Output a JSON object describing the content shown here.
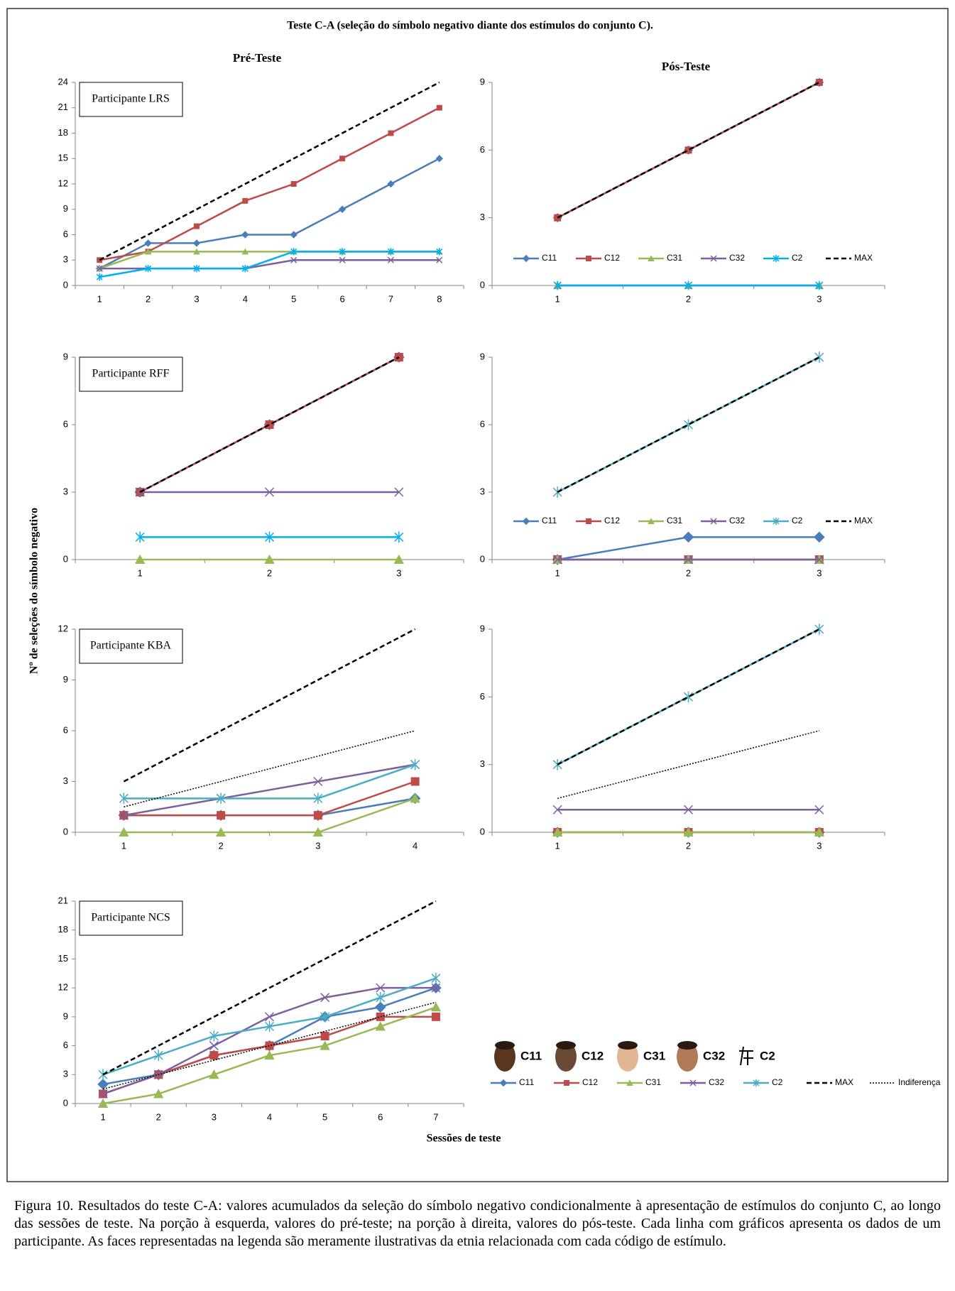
{
  "header": {
    "title": "Teste C-A (seleção do símbolo negativo diante dos estímulos do conjunto C).",
    "pre_label": "Pré-Teste",
    "post_label": "Pós-Teste",
    "y_label": "Nº de seleções do símbolo negativo",
    "x_label": "Sessões  de teste"
  },
  "chart_data": [
    {
      "type": "line",
      "title": "Participante LRS",
      "categories": [
        1,
        2,
        3,
        4,
        5,
        6,
        7,
        8
      ],
      "ylim": [
        0,
        24
      ],
      "yticks": [
        0,
        3,
        6,
        9,
        12,
        15,
        18,
        21,
        24
      ],
      "series": [
        {
          "name": "C11",
          "color": "#4a7ebb",
          "marker": "diamond",
          "values": [
            2,
            5,
            5,
            6,
            6,
            9,
            12,
            15
          ]
        },
        {
          "name": "C12",
          "color": "#be4b48",
          "marker": "square",
          "values": [
            3,
            4,
            7,
            10,
            12,
            15,
            18,
            21
          ]
        },
        {
          "name": "C31",
          "color": "#98b954",
          "marker": "triangle",
          "values": [
            2,
            4,
            4,
            4,
            4,
            4,
            4,
            4
          ]
        },
        {
          "name": "C32",
          "color": "#7d5fa0",
          "marker": "x",
          "values": [
            2,
            2,
            2,
            2,
            3,
            3,
            3,
            3
          ]
        },
        {
          "name": "C2",
          "color": "#00b0f0",
          "marker": "star",
          "values": [
            1,
            2,
            2,
            2,
            4,
            4,
            4,
            4
          ]
        },
        {
          "name": "MAX",
          "color": "#000000",
          "marker": "none",
          "dash": "dashed",
          "values": [
            3,
            6,
            9,
            12,
            15,
            18,
            21,
            24
          ]
        }
      ]
    },
    {
      "type": "line",
      "categories": [
        1,
        2,
        3
      ],
      "ylim": [
        0,
        9
      ],
      "yticks": [
        0,
        3,
        6,
        9
      ],
      "legend": "bottom",
      "series": [
        {
          "name": "C11",
          "color": "#4a7ebb",
          "marker": "diamond",
          "values": [
            3,
            6,
            9
          ]
        },
        {
          "name": "C12",
          "color": "#be4b48",
          "marker": "square",
          "values": [
            3,
            6,
            9
          ]
        },
        {
          "name": "C31",
          "color": "#98b954",
          "marker": "triangle",
          "values": [
            0,
            0,
            0
          ]
        },
        {
          "name": "C32",
          "color": "#7d5fa0",
          "marker": "x",
          "values": [
            0,
            0,
            0
          ]
        },
        {
          "name": "C2",
          "color": "#00b0f0",
          "marker": "star",
          "values": [
            0,
            0,
            0
          ]
        },
        {
          "name": "MAX",
          "color": "#000000",
          "marker": "none",
          "dash": "dashed",
          "values": [
            3,
            6,
            9
          ]
        }
      ]
    },
    {
      "type": "line",
      "title": "Participante RFF",
      "categories": [
        1,
        2,
        3
      ],
      "ylim": [
        0,
        9
      ],
      "yticks": [
        0,
        3,
        6,
        9
      ],
      "series": [
        {
          "name": "C11",
          "color": "#4a7ebb",
          "marker": "diamond",
          "values": [
            3,
            6,
            9
          ]
        },
        {
          "name": "C12",
          "color": "#be4b48",
          "marker": "square",
          "values": [
            3,
            6,
            9
          ]
        },
        {
          "name": "C31",
          "color": "#98b954",
          "marker": "triangle",
          "values": [
            0,
            0,
            0
          ]
        },
        {
          "name": "C32",
          "color": "#7d5fa0",
          "marker": "x",
          "values": [
            3,
            3,
            3
          ]
        },
        {
          "name": "C2",
          "color": "#00b0f0",
          "marker": "star",
          "values": [
            1,
            1,
            1
          ]
        },
        {
          "name": "MAX",
          "color": "#000000",
          "marker": "none",
          "dash": "dashed",
          "values": [
            3,
            6,
            9
          ]
        }
      ]
    },
    {
      "type": "line",
      "categories": [
        1,
        2,
        3
      ],
      "ylim": [
        0,
        9
      ],
      "yticks": [
        0,
        3,
        6,
        9
      ],
      "legend": "bottom",
      "series": [
        {
          "name": "C11",
          "color": "#4a7ebb",
          "marker": "diamond",
          "values": [
            0,
            1,
            1
          ]
        },
        {
          "name": "C12",
          "color": "#be4b48",
          "marker": "square",
          "values": [
            0,
            0,
            0
          ]
        },
        {
          "name": "C31",
          "color": "#98b954",
          "marker": "triangle",
          "values": [
            0,
            0,
            0
          ]
        },
        {
          "name": "C32",
          "color": "#7d5fa0",
          "marker": "x",
          "values": [
            0,
            0,
            0
          ]
        },
        {
          "name": "C2",
          "color": "#4bacc6",
          "marker": "star",
          "values": [
            3,
            6,
            9
          ]
        },
        {
          "name": "MAX",
          "color": "#000000",
          "marker": "none",
          "dash": "dashed",
          "values": [
            3,
            6,
            9
          ]
        }
      ]
    },
    {
      "type": "line",
      "title": "Participante KBA",
      "categories": [
        1,
        2,
        3,
        4
      ],
      "ylim": [
        0,
        12
      ],
      "yticks": [
        0,
        3,
        6,
        9,
        12
      ],
      "series": [
        {
          "name": "C11",
          "color": "#4a7ebb",
          "marker": "diamond",
          "values": [
            1,
            1,
            1,
            2
          ]
        },
        {
          "name": "C12",
          "color": "#be4b48",
          "marker": "square",
          "values": [
            1,
            1,
            1,
            3
          ]
        },
        {
          "name": "C31",
          "color": "#98b954",
          "marker": "triangle",
          "values": [
            0,
            0,
            0,
            2
          ]
        },
        {
          "name": "C32",
          "color": "#7d5fa0",
          "marker": "x",
          "values": [
            1,
            2,
            3,
            4
          ]
        },
        {
          "name": "C2",
          "color": "#4bacc6",
          "marker": "star",
          "values": [
            2,
            2,
            2,
            4
          ]
        },
        {
          "name": "MAX",
          "color": "#000000",
          "marker": "none",
          "dash": "dashed",
          "values": [
            3,
            6,
            9,
            12
          ]
        },
        {
          "name": "Indiferença",
          "color": "#000000",
          "marker": "none",
          "dash": "dotted",
          "values": [
            1.5,
            3,
            4.5,
            6
          ]
        }
      ]
    },
    {
      "type": "line",
      "categories": [
        1,
        2,
        3
      ],
      "ylim": [
        0,
        9
      ],
      "yticks": [
        0,
        3,
        6,
        9
      ],
      "series": [
        {
          "name": "C11",
          "color": "#4a7ebb",
          "marker": "diamond",
          "values": [
            0,
            0,
            0
          ]
        },
        {
          "name": "C12",
          "color": "#be4b48",
          "marker": "square",
          "values": [
            0,
            0,
            0
          ]
        },
        {
          "name": "C31",
          "color": "#98b954",
          "marker": "triangle",
          "values": [
            0,
            0,
            0
          ]
        },
        {
          "name": "C32",
          "color": "#7d5fa0",
          "marker": "x",
          "values": [
            1,
            1,
            1
          ]
        },
        {
          "name": "C2",
          "color": "#4bacc6",
          "marker": "star",
          "values": [
            3,
            6,
            9
          ]
        },
        {
          "name": "MAX",
          "color": "#000000",
          "marker": "none",
          "dash": "dashed",
          "values": [
            3,
            6,
            9
          ]
        },
        {
          "name": "Indiferença",
          "color": "#000000",
          "marker": "none",
          "dash": "dotted",
          "values": [
            1.5,
            3,
            4.5
          ]
        }
      ]
    },
    {
      "type": "line",
      "title": "Participante NCS",
      "categories": [
        1,
        2,
        3,
        4,
        5,
        6,
        7
      ],
      "ylim": [
        0,
        21
      ],
      "yticks": [
        0,
        3,
        6,
        9,
        12,
        15,
        18,
        21
      ],
      "legend": "right",
      "series": [
        {
          "name": "C11",
          "color": "#4a7ebb",
          "marker": "diamond",
          "values": [
            2,
            3,
            5,
            6,
            9,
            10,
            12
          ]
        },
        {
          "name": "C12",
          "color": "#be4b48",
          "marker": "square",
          "values": [
            1,
            3,
            5,
            6,
            7,
            9,
            9
          ]
        },
        {
          "name": "C31",
          "color": "#98b954",
          "marker": "triangle",
          "values": [
            0,
            1,
            3,
            5,
            6,
            8,
            10
          ]
        },
        {
          "name": "C32",
          "color": "#7d5fa0",
          "marker": "x",
          "values": [
            1,
            3,
            6,
            9,
            11,
            12,
            12
          ]
        },
        {
          "name": "C2",
          "color": "#4bacc6",
          "marker": "star",
          "values": [
            3,
            5,
            7,
            8,
            9,
            11,
            13
          ]
        },
        {
          "name": "MAX",
          "color": "#000000",
          "marker": "none",
          "dash": "dashed",
          "values": [
            3,
            6,
            9,
            12,
            15,
            18,
            21
          ]
        },
        {
          "name": "Indiferença",
          "color": "#000000",
          "marker": "none",
          "dash": "dotted",
          "values": [
            1.5,
            3,
            4.5,
            6,
            7.5,
            9,
            10.5
          ]
        }
      ]
    }
  ],
  "face_legend": [
    "C11",
    "C12",
    "C31",
    "C32",
    "C2"
  ],
  "caption": "Figura 10. Resultados do teste C-A: valores acumulados da seleção do símbolo negativo condicionalmente à apresentação de estímulos do conjunto C, ao longo das sessões de teste. Na porção à esquerda, valores do pré-teste; na porção à direita, valores do pós-teste. Cada linha com gráficos apresenta os dados de um participante. As faces representadas na legenda são meramente ilustrativas da etnia relacionada com cada código de estímulo."
}
